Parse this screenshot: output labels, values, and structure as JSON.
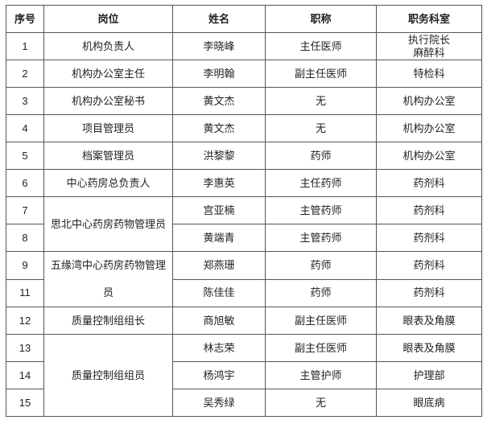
{
  "headers": [
    "序号",
    "岗位",
    "姓名",
    "职称",
    "职务科室"
  ],
  "rows": [
    {
      "no": "1",
      "post": "机构负责人",
      "name": "李晓峰",
      "title": "主任医师",
      "dept": "执行院长\n麻醉科"
    },
    {
      "no": "2",
      "post": "机构办公室主任",
      "name": "李明翰",
      "title": "副主任医师",
      "dept": "特检科"
    },
    {
      "no": "3",
      "post": "机构办公室秘书",
      "name": "黄文杰",
      "title": "无",
      "dept": "机构办公室"
    },
    {
      "no": "4",
      "post": "项目管理员",
      "name": "黄文杰",
      "title": "无",
      "dept": "机构办公室"
    },
    {
      "no": "5",
      "post": "档案管理员",
      "name": "洪黎黎",
      "title": "药师",
      "dept": "机构办公室"
    },
    {
      "no": "6",
      "post": "中心药房总负责人",
      "name": "李惠英",
      "title": "主任药师",
      "dept": "药剂科"
    },
    {
      "no": "7",
      "post": "思北中心药房药物管理员",
      "name": "宫亚楠",
      "title": "主管药师",
      "dept": "药剂科"
    },
    {
      "no": "8",
      "post": "",
      "name": "黄端青",
      "title": "主管药师",
      "dept": "药剂科"
    },
    {
      "no": "9",
      "post": "五缘湾中心药房药物管理员",
      "name": "郑燕珊",
      "title": "药师",
      "dept": "药剂科"
    },
    {
      "no": "11",
      "post": "",
      "name": "陈佳佳",
      "title": "药师",
      "dept": "药剂科"
    },
    {
      "no": "12",
      "post": "质量控制组组长",
      "name": "商旭敏",
      "title": "副主任医师",
      "dept": "眼表及角膜"
    },
    {
      "no": "13",
      "post": "质量控制组组员",
      "name": "林志荣",
      "title": "副主任医师",
      "dept": "眼表及角膜"
    },
    {
      "no": "14",
      "post": "",
      "name": "杨鸿宇",
      "title": "主管护师",
      "dept": "护理部"
    },
    {
      "no": "15",
      "post": "",
      "name": "吴秀绿",
      "title": "无",
      "dept": "眼底病"
    }
  ]
}
